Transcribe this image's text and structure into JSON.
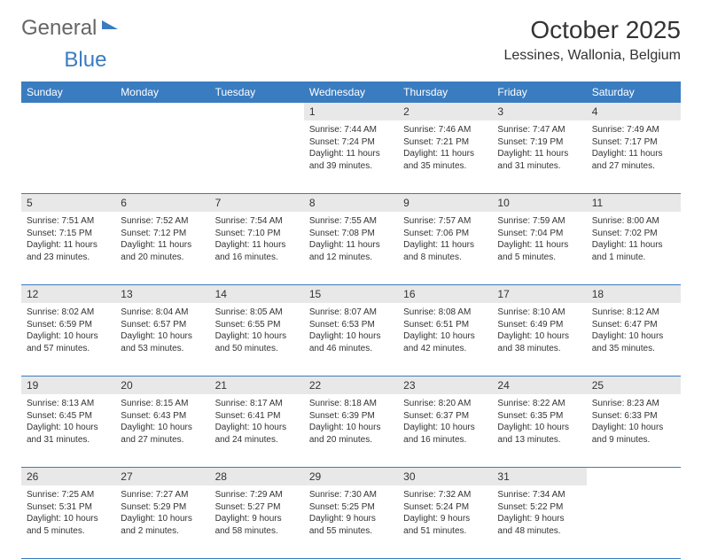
{
  "brand": {
    "part1": "General",
    "part2": "Blue"
  },
  "title": "October 2025",
  "location": "Lessines, Wallonia, Belgium",
  "headerBg": "#3a7cc0",
  "headerText": "#ffffff",
  "dayNumBg": "#e8e8e8",
  "borderColor": "#3a7cc0",
  "dayNames": [
    "Sunday",
    "Monday",
    "Tuesday",
    "Wednesday",
    "Thursday",
    "Friday",
    "Saturday"
  ],
  "weeks": [
    {
      "nums": [
        "",
        "",
        "",
        "1",
        "2",
        "3",
        "4"
      ],
      "cells": [
        null,
        null,
        null,
        {
          "sunrise": "Sunrise: 7:44 AM",
          "sunset": "Sunset: 7:24 PM",
          "daylight": "Daylight: 11 hours and 39 minutes."
        },
        {
          "sunrise": "Sunrise: 7:46 AM",
          "sunset": "Sunset: 7:21 PM",
          "daylight": "Daylight: 11 hours and 35 minutes."
        },
        {
          "sunrise": "Sunrise: 7:47 AM",
          "sunset": "Sunset: 7:19 PM",
          "daylight": "Daylight: 11 hours and 31 minutes."
        },
        {
          "sunrise": "Sunrise: 7:49 AM",
          "sunset": "Sunset: 7:17 PM",
          "daylight": "Daylight: 11 hours and 27 minutes."
        }
      ]
    },
    {
      "nums": [
        "5",
        "6",
        "7",
        "8",
        "9",
        "10",
        "11"
      ],
      "cells": [
        {
          "sunrise": "Sunrise: 7:51 AM",
          "sunset": "Sunset: 7:15 PM",
          "daylight": "Daylight: 11 hours and 23 minutes."
        },
        {
          "sunrise": "Sunrise: 7:52 AM",
          "sunset": "Sunset: 7:12 PM",
          "daylight": "Daylight: 11 hours and 20 minutes."
        },
        {
          "sunrise": "Sunrise: 7:54 AM",
          "sunset": "Sunset: 7:10 PM",
          "daylight": "Daylight: 11 hours and 16 minutes."
        },
        {
          "sunrise": "Sunrise: 7:55 AM",
          "sunset": "Sunset: 7:08 PM",
          "daylight": "Daylight: 11 hours and 12 minutes."
        },
        {
          "sunrise": "Sunrise: 7:57 AM",
          "sunset": "Sunset: 7:06 PM",
          "daylight": "Daylight: 11 hours and 8 minutes."
        },
        {
          "sunrise": "Sunrise: 7:59 AM",
          "sunset": "Sunset: 7:04 PM",
          "daylight": "Daylight: 11 hours and 5 minutes."
        },
        {
          "sunrise": "Sunrise: 8:00 AM",
          "sunset": "Sunset: 7:02 PM",
          "daylight": "Daylight: 11 hours and 1 minute."
        }
      ]
    },
    {
      "nums": [
        "12",
        "13",
        "14",
        "15",
        "16",
        "17",
        "18"
      ],
      "cells": [
        {
          "sunrise": "Sunrise: 8:02 AM",
          "sunset": "Sunset: 6:59 PM",
          "daylight": "Daylight: 10 hours and 57 minutes."
        },
        {
          "sunrise": "Sunrise: 8:04 AM",
          "sunset": "Sunset: 6:57 PM",
          "daylight": "Daylight: 10 hours and 53 minutes."
        },
        {
          "sunrise": "Sunrise: 8:05 AM",
          "sunset": "Sunset: 6:55 PM",
          "daylight": "Daylight: 10 hours and 50 minutes."
        },
        {
          "sunrise": "Sunrise: 8:07 AM",
          "sunset": "Sunset: 6:53 PM",
          "daylight": "Daylight: 10 hours and 46 minutes."
        },
        {
          "sunrise": "Sunrise: 8:08 AM",
          "sunset": "Sunset: 6:51 PM",
          "daylight": "Daylight: 10 hours and 42 minutes."
        },
        {
          "sunrise": "Sunrise: 8:10 AM",
          "sunset": "Sunset: 6:49 PM",
          "daylight": "Daylight: 10 hours and 38 minutes."
        },
        {
          "sunrise": "Sunrise: 8:12 AM",
          "sunset": "Sunset: 6:47 PM",
          "daylight": "Daylight: 10 hours and 35 minutes."
        }
      ]
    },
    {
      "nums": [
        "19",
        "20",
        "21",
        "22",
        "23",
        "24",
        "25"
      ],
      "cells": [
        {
          "sunrise": "Sunrise: 8:13 AM",
          "sunset": "Sunset: 6:45 PM",
          "daylight": "Daylight: 10 hours and 31 minutes."
        },
        {
          "sunrise": "Sunrise: 8:15 AM",
          "sunset": "Sunset: 6:43 PM",
          "daylight": "Daylight: 10 hours and 27 minutes."
        },
        {
          "sunrise": "Sunrise: 8:17 AM",
          "sunset": "Sunset: 6:41 PM",
          "daylight": "Daylight: 10 hours and 24 minutes."
        },
        {
          "sunrise": "Sunrise: 8:18 AM",
          "sunset": "Sunset: 6:39 PM",
          "daylight": "Daylight: 10 hours and 20 minutes."
        },
        {
          "sunrise": "Sunrise: 8:20 AM",
          "sunset": "Sunset: 6:37 PM",
          "daylight": "Daylight: 10 hours and 16 minutes."
        },
        {
          "sunrise": "Sunrise: 8:22 AM",
          "sunset": "Sunset: 6:35 PM",
          "daylight": "Daylight: 10 hours and 13 minutes."
        },
        {
          "sunrise": "Sunrise: 8:23 AM",
          "sunset": "Sunset: 6:33 PM",
          "daylight": "Daylight: 10 hours and 9 minutes."
        }
      ]
    },
    {
      "nums": [
        "26",
        "27",
        "28",
        "29",
        "30",
        "31",
        ""
      ],
      "cells": [
        {
          "sunrise": "Sunrise: 7:25 AM",
          "sunset": "Sunset: 5:31 PM",
          "daylight": "Daylight: 10 hours and 5 minutes."
        },
        {
          "sunrise": "Sunrise: 7:27 AM",
          "sunset": "Sunset: 5:29 PM",
          "daylight": "Daylight: 10 hours and 2 minutes."
        },
        {
          "sunrise": "Sunrise: 7:29 AM",
          "sunset": "Sunset: 5:27 PM",
          "daylight": "Daylight: 9 hours and 58 minutes."
        },
        {
          "sunrise": "Sunrise: 7:30 AM",
          "sunset": "Sunset: 5:25 PM",
          "daylight": "Daylight: 9 hours and 55 minutes."
        },
        {
          "sunrise": "Sunrise: 7:32 AM",
          "sunset": "Sunset: 5:24 PM",
          "daylight": "Daylight: 9 hours and 51 minutes."
        },
        {
          "sunrise": "Sunrise: 7:34 AM",
          "sunset": "Sunset: 5:22 PM",
          "daylight": "Daylight: 9 hours and 48 minutes."
        },
        null
      ]
    }
  ]
}
